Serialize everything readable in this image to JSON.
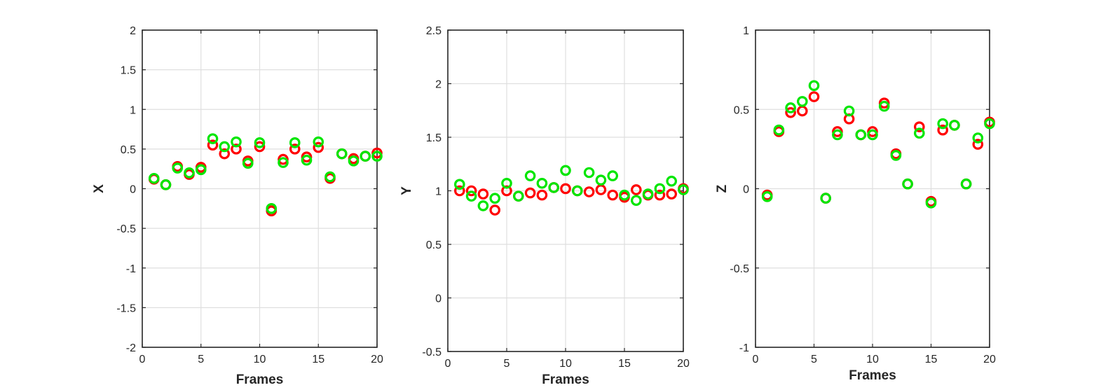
{
  "chart_data": [
    {
      "type": "scatter",
      "xlabel": "Frames",
      "ylabel": "X",
      "xlim": [
        0,
        20
      ],
      "ylim": [
        -2,
        2
      ],
      "xticks": [
        0,
        5,
        10,
        15,
        20
      ],
      "yticks": [
        -2,
        -1.5,
        -1,
        -0.5,
        0,
        0.5,
        1,
        1.5,
        2
      ],
      "xtick_labels": [
        "0",
        "5",
        "10",
        "15",
        "20"
      ],
      "ytick_labels": [
        "-2",
        "-1.5",
        "-1",
        "-0.5",
        "0",
        "0.5",
        "1",
        "1.5",
        "2"
      ],
      "grid": true,
      "series": [
        {
          "color": "#ff0000",
          "marker": "circle-open",
          "x": [
            1,
            2,
            3,
            4,
            5,
            6,
            7,
            8,
            9,
            10,
            11,
            12,
            13,
            14,
            15,
            16,
            17,
            18,
            19,
            20
          ],
          "y": [
            0.12,
            0.05,
            0.28,
            0.18,
            0.27,
            0.55,
            0.44,
            0.5,
            0.35,
            0.53,
            -0.28,
            0.37,
            0.5,
            0.4,
            0.52,
            0.13,
            0.44,
            0.38,
            0.41,
            0.45
          ]
        },
        {
          "color": "#00e600",
          "marker": "circle-open",
          "x": [
            1,
            2,
            3,
            4,
            5,
            6,
            7,
            8,
            9,
            10,
            11,
            12,
            13,
            14,
            15,
            16,
            17,
            18,
            19,
            20
          ],
          "y": [
            0.13,
            0.05,
            0.26,
            0.2,
            0.24,
            0.63,
            0.53,
            0.59,
            0.32,
            0.58,
            -0.25,
            0.33,
            0.58,
            0.36,
            0.59,
            0.15,
            0.44,
            0.35,
            0.41,
            0.41
          ]
        }
      ]
    },
    {
      "type": "scatter",
      "xlabel": "Frames",
      "ylabel": "Y",
      "xlim": [
        0,
        20
      ],
      "ylim": [
        -0.5,
        2.5
      ],
      "xticks": [
        0,
        5,
        10,
        15,
        20
      ],
      "yticks": [
        -0.5,
        0,
        0.5,
        1,
        1.5,
        2,
        2.5
      ],
      "xtick_labels": [
        "0",
        "5",
        "10",
        "15",
        "20"
      ],
      "ytick_labels": [
        "-0.5",
        "0",
        "0.5",
        "1",
        "1.5",
        "2",
        "2.5"
      ],
      "grid": true,
      "series": [
        {
          "color": "#ff0000",
          "marker": "circle-open",
          "x": [
            1,
            2,
            3,
            4,
            5,
            6,
            7,
            8,
            9,
            10,
            11,
            12,
            13,
            14,
            15,
            16,
            17,
            18,
            19,
            20
          ],
          "y": [
            1.0,
            1.0,
            0.97,
            0.82,
            1.0,
            0.95,
            0.98,
            0.96,
            1.03,
            1.02,
            1.0,
            0.99,
            1.01,
            0.96,
            0.94,
            1.01,
            0.96,
            0.96,
            0.97,
            1.02
          ]
        },
        {
          "color": "#00e600",
          "marker": "circle-open",
          "x": [
            1,
            2,
            3,
            4,
            5,
            6,
            7,
            8,
            9,
            10,
            11,
            12,
            13,
            14,
            15,
            16,
            17,
            18,
            19,
            20
          ],
          "y": [
            1.06,
            0.95,
            0.86,
            0.93,
            1.07,
            0.95,
            1.14,
            1.07,
            1.03,
            1.19,
            1.0,
            1.17,
            1.1,
            1.14,
            0.96,
            0.91,
            0.97,
            1.02,
            1.09,
            1.01
          ]
        }
      ]
    },
    {
      "type": "scatter",
      "xlabel": "Frames",
      "ylabel": "Z",
      "xlim": [
        0,
        20
      ],
      "ylim": [
        -1,
        1
      ],
      "xticks": [
        0,
        5,
        10,
        15,
        20
      ],
      "yticks": [
        -1,
        -0.5,
        0,
        0.5,
        1
      ],
      "xtick_labels": [
        "0",
        "5",
        "10",
        "15",
        "20"
      ],
      "ytick_labels": [
        "-1",
        "-0.5",
        "0",
        "0.5",
        "1"
      ],
      "grid": true,
      "series": [
        {
          "color": "#ff0000",
          "marker": "circle-open",
          "x": [
            1,
            2,
            3,
            4,
            5,
            6,
            7,
            8,
            9,
            10,
            11,
            12,
            13,
            14,
            15,
            16,
            17,
            18,
            19,
            20
          ],
          "y": [
            -0.04,
            0.36,
            0.48,
            0.49,
            0.58,
            -0.06,
            0.36,
            0.44,
            0.34,
            0.36,
            0.54,
            0.22,
            0.03,
            0.39,
            -0.08,
            0.37,
            0.4,
            0.03,
            0.28,
            0.42
          ]
        },
        {
          "color": "#00e600",
          "marker": "circle-open",
          "x": [
            1,
            2,
            3,
            4,
            5,
            6,
            7,
            8,
            9,
            10,
            11,
            12,
            13,
            14,
            15,
            16,
            17,
            18,
            19,
            20
          ],
          "y": [
            -0.05,
            0.37,
            0.51,
            0.55,
            0.65,
            -0.06,
            0.34,
            0.49,
            0.34,
            0.34,
            0.52,
            0.21,
            0.03,
            0.35,
            -0.09,
            0.41,
            0.4,
            0.03,
            0.32,
            0.41
          ]
        }
      ]
    }
  ]
}
